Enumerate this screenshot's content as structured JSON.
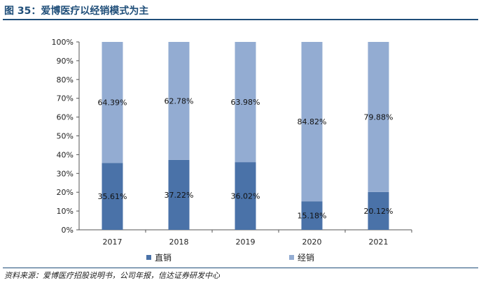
{
  "title": "图 35：爱博医疗以经销模式为主",
  "source": "资料来源：爱博医疗招股说明书，公司年报，信达证券研发中心",
  "chart_data": {
    "type": "bar",
    "stacked": true,
    "categories": [
      "2017",
      "2018",
      "2019",
      "2020",
      "2021"
    ],
    "series": [
      {
        "name": "直销",
        "values": [
          35.61,
          37.22,
          36.02,
          15.18,
          20.12
        ],
        "labels": [
          "35.61%",
          "37.22%",
          "36.02%",
          "15.18%",
          "20.12%"
        ],
        "color": "#4a72a8"
      },
      {
        "name": "经销",
        "values": [
          64.39,
          62.78,
          63.98,
          84.82,
          79.88
        ],
        "labels": [
          "64.39%",
          "62.78%",
          "63.98%",
          "84.82%",
          "79.88%"
        ],
        "color": "#93acd2"
      }
    ],
    "ylim": [
      0,
      100
    ],
    "yticks": [
      "0%",
      "10%",
      "20%",
      "30%",
      "40%",
      "50%",
      "60%",
      "70%",
      "80%",
      "90%",
      "100%"
    ],
    "grid": false,
    "legend_position": "bottom"
  }
}
